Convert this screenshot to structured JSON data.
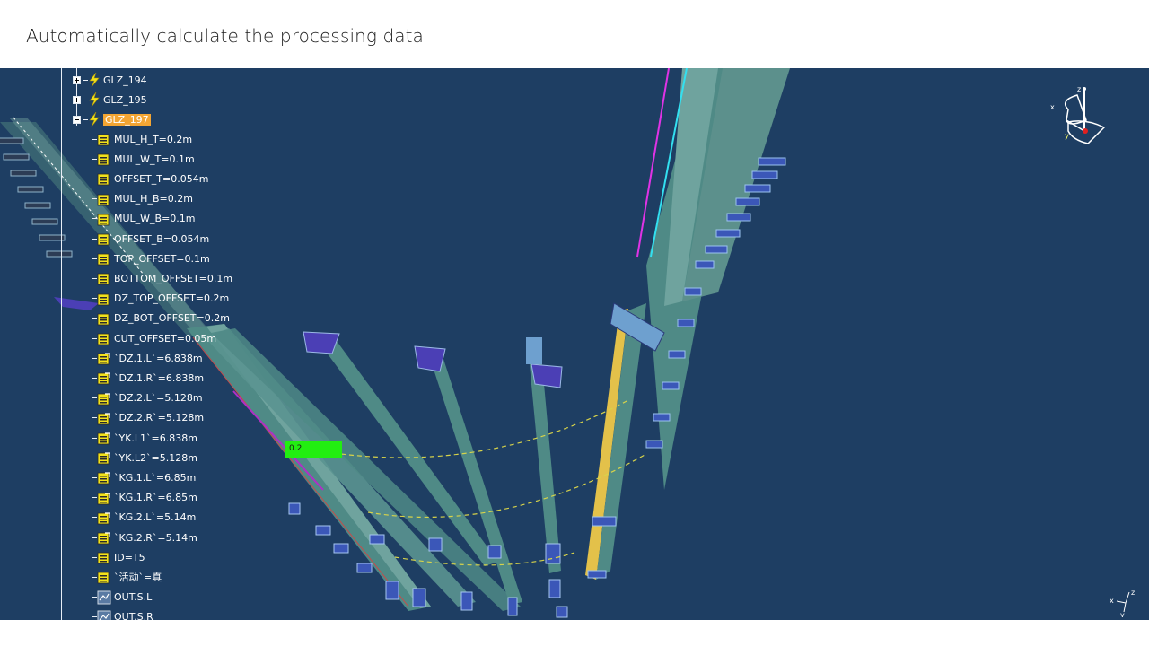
{
  "slide": {
    "title": "Automatically calculate the processing data"
  },
  "tree": {
    "nodes": [
      {
        "label": "GLZ_194",
        "icon": "feature-bolt-icon",
        "expander": "plus"
      },
      {
        "label": "GLZ_195",
        "icon": "feature-bolt-icon",
        "expander": "plus"
      },
      {
        "label": "GLZ_197",
        "icon": "feature-bolt-icon",
        "expander": "minus",
        "selected": true
      }
    ],
    "params": [
      {
        "label": "MUL_H_T=0.2m",
        "icon": "parameter-icon"
      },
      {
        "label": "MUL_W_T=0.1m",
        "icon": "parameter-icon"
      },
      {
        "label": "OFFSET_T=0.054m",
        "icon": "parameter-icon"
      },
      {
        "label": "MUL_H_B=0.2m",
        "icon": "parameter-icon"
      },
      {
        "label": "MUL_W_B=0.1m",
        "icon": "parameter-icon"
      },
      {
        "label": "OFFSET_B=0.054m",
        "icon": "parameter-icon"
      },
      {
        "label": "TOP_OFFSET=0.1m",
        "icon": "parameter-icon"
      },
      {
        "label": "BOTTOM_OFFSET=0.1m",
        "icon": "parameter-icon"
      },
      {
        "label": "DZ_TOP_OFFSET=0.2m",
        "icon": "parameter-icon"
      },
      {
        "label": "DZ_BOT_OFFSET=0.2m",
        "icon": "parameter-icon"
      },
      {
        "label": "CUT_OFFSET=0.05m",
        "icon": "parameter-icon"
      },
      {
        "label": "`DZ.1.L`=6.838m",
        "icon": "formula-parameter-icon"
      },
      {
        "label": "`DZ.1.R`=6.838m",
        "icon": "formula-parameter-icon"
      },
      {
        "label": "`DZ.2.L`=5.128m",
        "icon": "formula-parameter-icon"
      },
      {
        "label": "`DZ.2.R`=5.128m",
        "icon": "formula-parameter-icon"
      },
      {
        "label": "`YK.L1`=6.838m",
        "icon": "formula-parameter-icon"
      },
      {
        "label": "`YK.L2`=5.128m",
        "icon": "formula-parameter-icon"
      },
      {
        "label": "`KG.1.L`=6.85m",
        "icon": "formula-parameter-icon"
      },
      {
        "label": "`KG.1.R`=6.85m",
        "icon": "formula-parameter-icon"
      },
      {
        "label": "`KG.2.L`=5.14m",
        "icon": "formula-parameter-icon"
      },
      {
        "label": "`KG.2.R`=5.14m",
        "icon": "formula-parameter-icon"
      },
      {
        "label": "ID=T5",
        "icon": "parameter-icon"
      },
      {
        "label": "`活动`=真",
        "icon": "parameter-icon"
      },
      {
        "label": "OUT.S.L",
        "icon": "output-icon"
      },
      {
        "label": "OUT.S.R",
        "icon": "output-icon"
      }
    ]
  },
  "viewport": {
    "background": "#1e3e63",
    "measure_tag": "0.2",
    "compass": {
      "x_label": "x",
      "y_label": "y",
      "z_label": "z"
    },
    "mini_axis": {
      "x_label": "x",
      "y_label": "y",
      "z_label": "z"
    }
  },
  "colors": {
    "selection": "#f3a533",
    "beam": "#4f8a86",
    "measure": "#22ee11",
    "dash": "#d7d34a"
  }
}
